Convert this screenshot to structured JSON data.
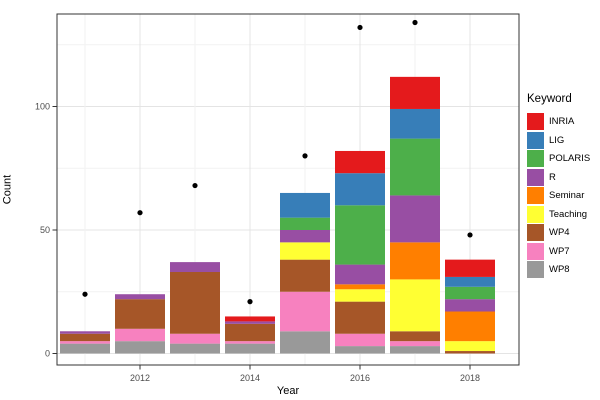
{
  "chart_data": {
    "type": "bar",
    "stacked": true,
    "title": "",
    "xlabel": "Year",
    "ylabel": "Count",
    "legend_title": "Keyword",
    "legend_position": "right",
    "grid": true,
    "background": "#ffffff",
    "categories": [
      "2011",
      "2012",
      "2013",
      "2014",
      "2015",
      "2016",
      "2017",
      "2018"
    ],
    "x_tick_labels": [
      "2012",
      "2014",
      "2016",
      "2018"
    ],
    "y_ticks": [
      0,
      50,
      100
    ],
    "y_minor_gridlines": [
      25,
      75,
      125
    ],
    "ylim": [
      0,
      137
    ],
    "series": [
      {
        "name": "INRIA",
        "color": "#e41a1c",
        "values": [
          0,
          0,
          0,
          2,
          0,
          9,
          13,
          7
        ]
      },
      {
        "name": "LIG",
        "color": "#377eb8",
        "values": [
          0,
          0,
          0,
          0,
          10,
          13,
          12,
          4
        ]
      },
      {
        "name": "POLARIS",
        "color": "#4daf4a",
        "values": [
          0,
          0,
          0,
          0,
          5,
          24,
          23,
          5
        ]
      },
      {
        "name": "R",
        "color": "#984ea3",
        "values": [
          1,
          2,
          4,
          1,
          5,
          8,
          19,
          5
        ]
      },
      {
        "name": "Seminar",
        "color": "#ff7f00",
        "values": [
          0,
          0,
          0,
          0,
          0,
          2,
          15,
          12
        ]
      },
      {
        "name": "Teaching",
        "color": "#ffff33",
        "values": [
          0,
          0,
          0,
          0,
          7,
          5,
          21,
          4
        ]
      },
      {
        "name": "WP4",
        "color": "#a65628",
        "values": [
          3,
          12,
          25,
          7,
          13,
          13,
          4,
          1
        ]
      },
      {
        "name": "WP7",
        "color": "#f781bf",
        "values": [
          1,
          5,
          4,
          1,
          16,
          5,
          2,
          0
        ]
      },
      {
        "name": "WP8",
        "color": "#999999",
        "values": [
          4,
          5,
          4,
          4,
          9,
          3,
          3,
          0
        ]
      }
    ],
    "stack_order_bottom_to_top": [
      "WP8",
      "WP7",
      "WP4",
      "Teaching",
      "Seminar",
      "R",
      "POLARIS",
      "LIG",
      "INRIA"
    ],
    "points_series": {
      "name": "dot-overlay",
      "color": "#000000",
      "values": [
        24,
        57,
        68,
        21,
        80,
        132,
        134,
        48
      ]
    }
  }
}
